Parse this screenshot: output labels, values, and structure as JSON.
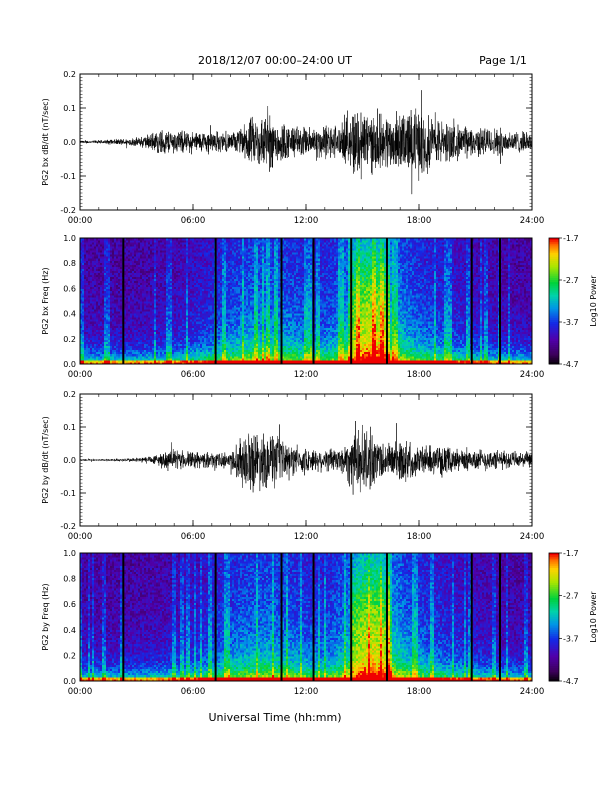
{
  "header": {
    "title": "2018/12/07   00:00–24:00 UT",
    "page": "Page 1/1"
  },
  "footer": {
    "xlabel": "Universal Time (hh:mm)"
  },
  "chart_data": [
    {
      "type": "line",
      "ylabel": "PG2 bx dB/dt (nT/sec)",
      "xticks": [
        "00:00",
        "06:00",
        "12:00",
        "18:00",
        "24:00"
      ],
      "yticks": [
        "-0.2",
        "-0.1",
        "0.0",
        "0.1",
        "0.2"
      ],
      "xlim_hours": [
        0,
        24
      ],
      "ylim": [
        -0.2,
        0.2
      ],
      "envelope": {
        "t_hours": [
          0,
          1,
          2,
          3,
          3.8,
          4.3,
          5,
          6,
          7,
          8,
          8.5,
          9,
          9.5,
          10,
          10.5,
          11,
          12,
          13,
          14,
          14.5,
          15,
          15.5,
          16,
          16.5,
          17,
          17.5,
          18,
          18.5,
          19,
          20,
          21,
          22,
          23,
          24
        ],
        "amplitude": [
          0.005,
          0.006,
          0.01,
          0.015,
          0.03,
          0.045,
          0.04,
          0.035,
          0.04,
          0.03,
          0.045,
          0.08,
          0.09,
          0.1,
          0.08,
          0.06,
          0.05,
          0.06,
          0.06,
          0.12,
          0.13,
          0.1,
          0.09,
          0.1,
          0.1,
          0.11,
          0.12,
          0.1,
          0.08,
          0.06,
          0.05,
          0.05,
          0.04,
          0.03
        ]
      }
    },
    {
      "type": "heatmap",
      "ylabel": "PG2 bx Freq (Hz)",
      "xticks": [
        "00:00",
        "06:00",
        "12:00",
        "18:00",
        "24:00"
      ],
      "yticks": [
        "0.0",
        "0.2",
        "0.4",
        "0.6",
        "0.8",
        "1.0"
      ],
      "xlim_hours": [
        0,
        24
      ],
      "ylim": [
        0,
        1.0
      ],
      "colorbar": {
        "label": "Log10 Power",
        "ticks": [
          "-1.7",
          "-2.7",
          "-3.7",
          "-4.7"
        ],
        "range": [
          -4.7,
          -1.7
        ]
      },
      "gap_lines_hours": [
        2.3,
        7.2,
        10.7,
        12.4,
        14.4,
        16.3,
        20.8,
        22.3
      ],
      "activity_hours": [
        14.3,
        16.5
      ]
    },
    {
      "type": "line",
      "ylabel": "PG2 by dB/dt (nT/sec)",
      "xticks": [
        "00:00",
        "06:00",
        "12:00",
        "18:00",
        "24:00"
      ],
      "yticks": [
        "-0.2",
        "-0.1",
        "0.0",
        "0.1",
        "0.2"
      ],
      "xlim_hours": [
        0,
        24
      ],
      "ylim": [
        -0.2,
        0.2
      ],
      "envelope": {
        "t_hours": [
          0,
          1,
          2,
          3,
          3.8,
          4.5,
          5,
          6,
          7,
          8,
          8.5,
          9,
          9.5,
          10,
          10.5,
          11,
          12,
          13,
          14,
          14.5,
          15,
          15.5,
          16,
          16.5,
          17,
          17.5,
          18,
          18.5,
          19,
          20,
          21,
          22,
          23,
          24
        ],
        "amplitude": [
          0.003,
          0.004,
          0.005,
          0.008,
          0.015,
          0.03,
          0.035,
          0.03,
          0.025,
          0.03,
          0.08,
          0.11,
          0.1,
          0.1,
          0.08,
          0.06,
          0.04,
          0.04,
          0.05,
          0.12,
          0.12,
          0.1,
          0.07,
          0.06,
          0.08,
          0.07,
          0.05,
          0.05,
          0.05,
          0.04,
          0.04,
          0.035,
          0.03,
          0.025
        ]
      }
    },
    {
      "type": "heatmap",
      "ylabel": "PG2 by Freq (Hz)",
      "xticks": [
        "00:00",
        "06:00",
        "12:00",
        "18:00",
        "24:00"
      ],
      "yticks": [
        "0.0",
        "0.2",
        "0.4",
        "0.6",
        "0.8",
        "1.0"
      ],
      "xlim_hours": [
        0,
        24
      ],
      "ylim": [
        0,
        1.0
      ],
      "colorbar": {
        "label": "Log10 Power",
        "ticks": [
          "-1.7",
          "-2.7",
          "-3.7",
          "-4.7"
        ],
        "range": [
          -4.7,
          -1.7
        ]
      },
      "gap_lines_hours": [
        2.3,
        7.2,
        10.7,
        12.4,
        14.4,
        16.3,
        20.8,
        22.3
      ],
      "activity_hours": [
        14.3,
        16.5
      ]
    }
  ]
}
